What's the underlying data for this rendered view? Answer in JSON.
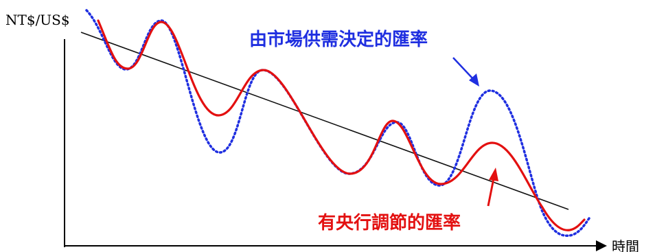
{
  "labels": {
    "y_axis": "NT$/US$",
    "x_axis": "時間",
    "market_rate": "由市場供需決定的匯率",
    "managed_rate": "有央行調節的匯率"
  },
  "colors": {
    "market_rate": "#1f2fe0",
    "managed_rate": "#e31010",
    "trend": "#111111",
    "axes": "#000000",
    "background": "#ffffff"
  }
}
